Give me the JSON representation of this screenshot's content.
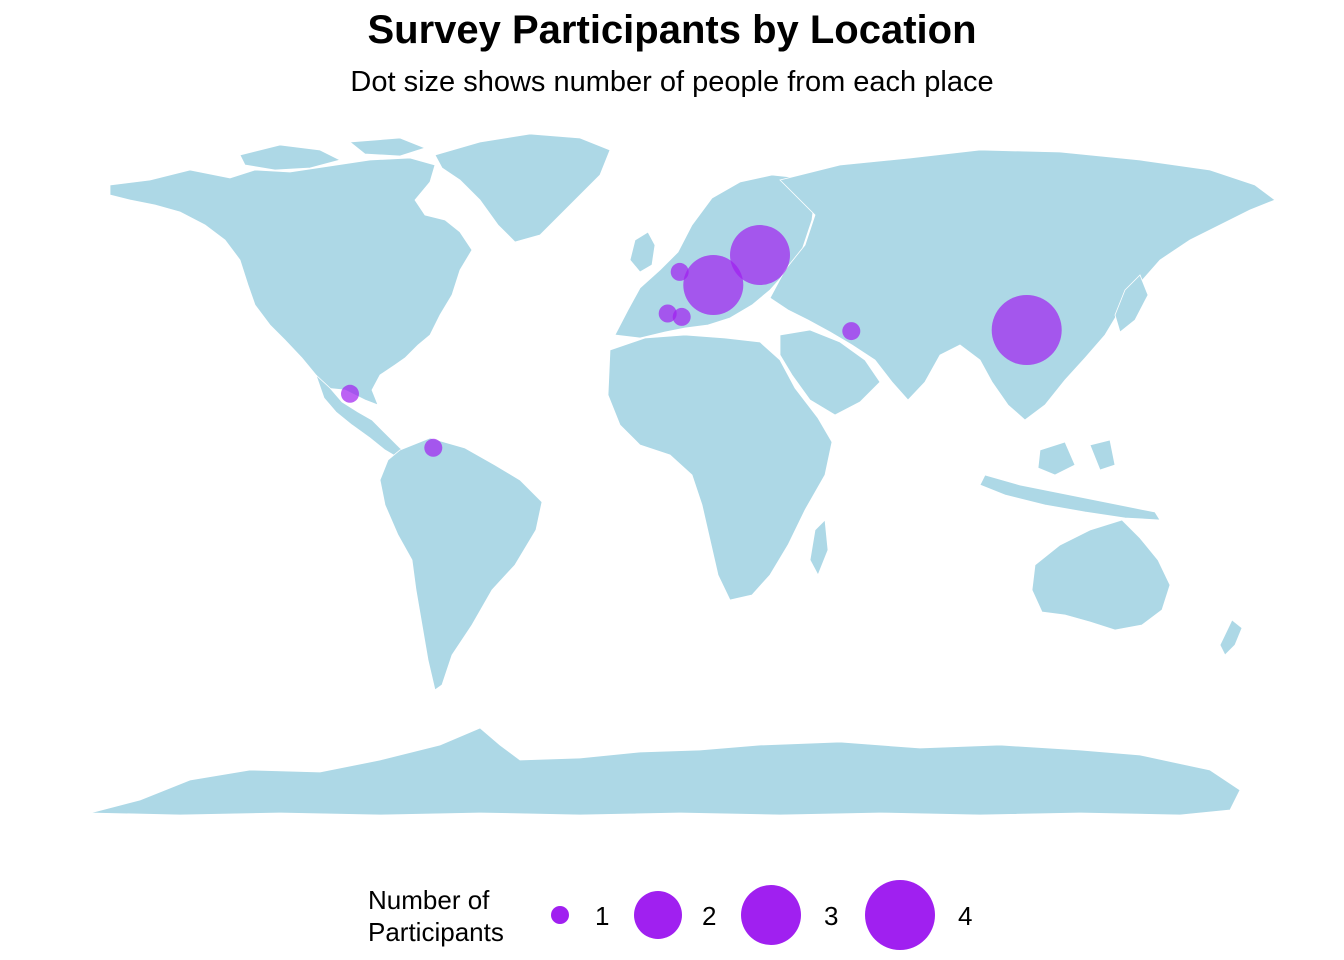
{
  "title": "Survey Participants by Location",
  "subtitle": "Dot size shows number of people from each place",
  "colors": {
    "land": "#ADD8E6",
    "border": "#ffffff",
    "dot": "#A020F0"
  },
  "legend": {
    "title_line1": "Number of",
    "title_line2": "Participants",
    "entries": [
      {
        "value": 1,
        "label": "1"
      },
      {
        "value": 2,
        "label": "2"
      },
      {
        "value": 3,
        "label": "3"
      },
      {
        "value": 4,
        "label": "4"
      }
    ]
  },
  "locations": [
    {
      "lon": -99,
      "lat": 19,
      "count": 1
    },
    {
      "lon": -74,
      "lat": 4.6,
      "count": 1
    },
    {
      "lon": -3.7,
      "lat": 40.4,
      "count": 1
    },
    {
      "lon": 0.5,
      "lat": 39.5,
      "count": 1
    },
    {
      "lon": -0.1,
      "lat": 51.5,
      "count": 1
    },
    {
      "lon": 10,
      "lat": 48,
      "count": 3
    },
    {
      "lon": 24,
      "lat": 56,
      "count": 3
    },
    {
      "lon": 51.4,
      "lat": 35.7,
      "count": 1
    },
    {
      "lon": 104,
      "lat": 36,
      "count": 4
    }
  ]
}
